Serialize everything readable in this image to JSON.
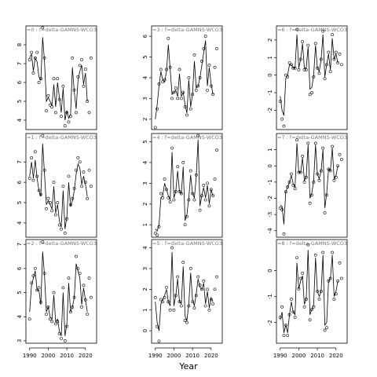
{
  "figure": {
    "xlabel": "Year"
  },
  "chart_data": [
    {
      "type": "line",
      "title": "=0 : f=delta-GAMNS-WCO3",
      "x": [
        1990,
        1991,
        1992,
        1993,
        1994,
        1995,
        1996,
        1997,
        1998,
        1999,
        2000,
        2001,
        2002,
        2003,
        2004,
        2005,
        2006,
        2007,
        2008,
        2009,
        2010,
        2011,
        2012,
        2013,
        2014,
        2015,
        2016,
        2017,
        2018,
        2019,
        2020,
        2021,
        2022,
        2023
      ],
      "y": [
        7.2,
        7.6,
        6.5,
        7.3,
        7.6,
        6.0,
        6.2,
        8.9,
        7.3,
        4.5,
        5.3,
        4.8,
        4.7,
        6.2,
        4.4,
        6.2,
        5.1,
        4.2,
        5.8,
        3.7,
        4.4,
        3.9,
        4.2,
        7.3,
        5.6,
        4.4,
        6.3,
        6.9,
        7.2,
        5.8,
        6.7,
        5.0,
        4.4,
        7.3
      ],
      "fit": [
        7.3,
        7.5,
        6.6,
        7.3,
        7.1,
        6.3,
        6.1,
        8.4,
        7.1,
        5.0,
        5.2,
        5.0,
        4.8,
        5.9,
        4.7,
        6.0,
        5.2,
        4.4,
        5.7,
        4.0,
        4.5,
        4.1,
        4.3,
        6.8,
        5.5,
        4.6,
        6.1,
        6.6,
        6.9,
        5.9,
        6.5,
        5.0
      ],
      "ylim": [
        3.5,
        9.0
      ],
      "yticks": [
        4,
        5,
        6,
        7,
        8
      ]
    },
    {
      "type": "line",
      "title": "=1 : f=delta-GAMNS-WCO3",
      "x": [
        1990,
        1991,
        1992,
        1993,
        1994,
        1995,
        1996,
        1997,
        1998,
        1999,
        2000,
        2001,
        2002,
        2003,
        2004,
        2005,
        2006,
        2007,
        2008,
        2009,
        2010,
        2011,
        2012,
        2013,
        2014,
        2015,
        2016,
        2017,
        2018,
        2019,
        2020,
        2021,
        2022,
        2023
      ],
      "y": [
        6.2,
        7.2,
        6.1,
        7.5,
        6.3,
        5.6,
        5.4,
        8.3,
        6.6,
        4.7,
        5.2,
        5.0,
        4.6,
        6.0,
        4.4,
        5.0,
        3.9,
        3.7,
        5.8,
        3.5,
        4.2,
        6.3,
        4.9,
        5.2,
        5.7,
        6.6,
        7.2,
        7.0,
        5.8,
        6.5,
        6.0,
        5.2,
        6.6,
        5.8
      ],
      "fit": [
        6.3,
        7.0,
        6.2,
        7.1,
        6.2,
        5.6,
        5.3,
        7.9,
        6.4,
        4.9,
        5.1,
        4.9,
        4.7,
        5.8,
        4.5,
        4.9,
        4.1,
        3.8,
        5.6,
        3.7,
        4.3,
        6.0,
        4.8,
        5.1,
        5.6,
        6.4,
        6.9,
        6.7,
        5.9,
        6.3,
        5.9,
        5.3
      ],
      "ylim": [
        3.3,
        8.4
      ],
      "yticks": [
        4,
        5,
        6,
        7
      ]
    },
    {
      "type": "line",
      "title": "=2 : f=delta-GAMNS-WCO3",
      "x": [
        1990,
        1991,
        1992,
        1993,
        1994,
        1995,
        1996,
        1997,
        1998,
        1999,
        2000,
        2001,
        2002,
        2003,
        2004,
        2005,
        2006,
        2007,
        2008,
        2009,
        2010,
        2011,
        2012,
        2013,
        2014,
        2015,
        2016,
        2017,
        2018,
        2019,
        2020,
        2021,
        2022,
        2023
      ],
      "y": [
        3.9,
        5.4,
        5.7,
        6.0,
        5.1,
        5.2,
        4.6,
        7.1,
        5.8,
        4.1,
        4.4,
        3.9,
        3.8,
        5.0,
        3.7,
        3.8,
        3.3,
        3.1,
        5.2,
        3.0,
        3.6,
        5.6,
        4.2,
        4.4,
        4.8,
        6.5,
        6.0,
        5.8,
        4.4,
        5.3,
        4.7,
        4.1,
        5.6,
        4.8
      ],
      "fit": [
        4.2,
        5.3,
        5.6,
        5.9,
        5.1,
        5.1,
        4.5,
        6.7,
        5.7,
        4.2,
        4.4,
        4.0,
        3.9,
        4.9,
        3.8,
        3.9,
        3.4,
        3.2,
        5.0,
        3.2,
        3.7,
        5.4,
        4.2,
        4.4,
        4.8,
        6.2,
        5.9,
        5.6,
        4.5,
        5.2,
        4.7,
        4.2
      ],
      "ylim": [
        2.9,
        7.2
      ],
      "yticks": [
        3,
        4,
        5,
        6,
        7
      ]
    },
    {
      "type": "line",
      "title": "=3 : f=delta-GAMNS-WCO3",
      "x": [
        1990,
        1991,
        1992,
        1993,
        1994,
        1995,
        1996,
        1997,
        1998,
        1999,
        2000,
        2001,
        2002,
        2003,
        2004,
        2005,
        2006,
        2007,
        2008,
        2009,
        2010,
        2011,
        2012,
        2013,
        2014,
        2015,
        2016,
        2017,
        2018,
        2019,
        2020,
        2021,
        2022,
        2023
      ],
      "y": [
        1.6,
        2.5,
        3.7,
        4.4,
        3.8,
        3.9,
        4.4,
        5.9,
        4.5,
        3.0,
        3.3,
        3.5,
        3.0,
        4.4,
        3.0,
        3.3,
        2.6,
        2.2,
        4.0,
        2.5,
        3.2,
        5.1,
        3.4,
        3.6,
        4.0,
        4.8,
        5.4,
        6.0,
        3.4,
        4.6,
        3.6,
        3.2,
        4.5,
        5.4
      ],
      "fit": [
        2.0,
        2.7,
        3.6,
        4.3,
        3.9,
        3.8,
        4.3,
        5.6,
        4.4,
        3.2,
        3.3,
        3.4,
        3.1,
        4.2,
        3.1,
        3.3,
        2.7,
        2.3,
        3.9,
        2.6,
        3.2,
        4.8,
        3.5,
        3.6,
        4.0,
        4.6,
        5.2,
        5.8,
        3.6,
        4.5,
        3.7,
        3.2
      ],
      "ylim": [
        1.5,
        6.5
      ],
      "yticks": [
        2,
        3,
        4,
        5,
        6
      ]
    },
    {
      "type": "line",
      "title": "=4 : f=delta-GAMNS-WCO3",
      "x": [
        1990,
        1991,
        1992,
        1993,
        1994,
        1995,
        1996,
        1997,
        1998,
        1999,
        2000,
        2001,
        2002,
        2003,
        2004,
        2005,
        2006,
        2007,
        2008,
        2009,
        2010,
        2011,
        2012,
        2013,
        2014,
        2015,
        2016,
        2017,
        2018,
        2019,
        2020,
        2021,
        2022,
        2023
      ],
      "y": [
        0.6,
        0.5,
        0.9,
        2.5,
        2.3,
        3.2,
        2.7,
        2.3,
        2.1,
        4.7,
        2.2,
        2.6,
        3.8,
        2.6,
        2.5,
        4.0,
        1.0,
        1.4,
        2.2,
        3.6,
        2.5,
        2.2,
        3.4,
        5.3,
        1.7,
        2.4,
        2.9,
        2.2,
        3.0,
        1.9,
        2.7,
        2.4,
        3.2,
        4.6
      ],
      "fit": [
        0.8,
        0.7,
        1.0,
        2.3,
        2.4,
        3.0,
        2.7,
        2.4,
        2.2,
        4.5,
        2.3,
        2.6,
        3.6,
        2.6,
        2.5,
        3.8,
        1.2,
        1.5,
        2.3,
        3.4,
        2.5,
        2.3,
        3.3,
        5.1,
        1.9,
        2.4,
        2.8,
        2.3,
        2.9,
        2.0,
        2.7,
        2.4
      ],
      "ylim": [
        0.4,
        5.4
      ],
      "yticks": [
        1,
        2,
        3,
        4,
        5
      ]
    },
    {
      "type": "line",
      "title": "=5 : f=delta-GAMNS-WCO3",
      "x": [
        1990,
        1991,
        1992,
        1993,
        1994,
        1995,
        1996,
        1997,
        1998,
        1999,
        2000,
        2001,
        2002,
        2003,
        2004,
        2005,
        2006,
        2007,
        2008,
        2009,
        2010,
        2011,
        2012,
        2013,
        2014,
        2015,
        2016,
        2017,
        2018,
        2019,
        2020,
        2021,
        2022,
        2023
      ],
      "y": [
        1.6,
        0.2,
        -0.5,
        1.5,
        1.4,
        1.6,
        2.1,
        1.4,
        1.0,
        4.0,
        1.0,
        1.7,
        2.6,
        1.4,
        1.2,
        3.3,
        0.5,
        0.4,
        1.2,
        3.0,
        1.4,
        1.1,
        1.7,
        2.6,
        2.2,
        2.0,
        2.4,
        1.2,
        2.0,
        1.0,
        1.5,
        1.3,
        2.0,
        2.6
      ],
      "fit": [
        1.4,
        0.4,
        0.0,
        1.3,
        1.5,
        1.7,
        2.0,
        1.4,
        1.2,
        3.8,
        1.2,
        1.7,
        2.5,
        1.4,
        1.3,
        3.1,
        0.7,
        0.5,
        1.3,
        2.8,
        1.5,
        1.2,
        1.8,
        2.5,
        2.1,
        2.0,
        2.3,
        1.3,
        1.9,
        1.1,
        1.6,
        1.4
      ],
      "ylim": [
        -0.6,
        4.4
      ],
      "yticks": [
        0,
        1,
        2,
        3,
        4
      ]
    },
    {
      "type": "line",
      "title": "=6 : f=delta-GAMNS-WCO3",
      "x": [
        1990,
        1991,
        1992,
        1993,
        1994,
        1995,
        1996,
        1997,
        1998,
        1999,
        2000,
        2001,
        2002,
        2003,
        2004,
        2005,
        2006,
        2007,
        2008,
        2009,
        2010,
        2011,
        2012,
        2013,
        2014,
        2015,
        2016,
        2017,
        2018,
        2019,
        2020,
        2021,
        2022,
        2023
      ],
      "y": [
        -1.5,
        -2.5,
        -2.9,
        0.0,
        -0.1,
        0.7,
        0.6,
        0.4,
        0.4,
        2.6,
        0.3,
        0.9,
        1.9,
        0.3,
        0.3,
        1.7,
        -1.1,
        -1.0,
        -0.1,
        1.8,
        0.4,
        0.1,
        0.9,
        2.5,
        -0.2,
        0.6,
        1.3,
        0.2,
        2.3,
        0.9,
        1.3,
        0.7,
        1.2,
        0.6
      ],
      "fit": [
        -1.2,
        -2.0,
        -2.3,
        -0.2,
        0.0,
        0.6,
        0.6,
        0.4,
        0.4,
        2.3,
        0.4,
        0.9,
        1.8,
        0.4,
        0.4,
        1.6,
        -0.8,
        -0.7,
        0.0,
        1.7,
        0.4,
        0.2,
        0.9,
        2.3,
        -0.1,
        0.6,
        1.2,
        0.3,
        2.1,
        0.9,
        1.2,
        0.7
      ],
      "ylim": [
        -3.1,
        2.8
      ],
      "yticks": [
        -2,
        -1,
        0,
        1,
        2
      ]
    },
    {
      "type": "line",
      "title": "=7 : f=delta-GAMNS-WCO3",
      "x": [
        1990,
        1991,
        1992,
        1993,
        1994,
        1995,
        1996,
        1997,
        1998,
        1999,
        2000,
        2001,
        2002,
        2003,
        2004,
        2005,
        2006,
        2007,
        2008,
        2009,
        2010,
        2011,
        2012,
        2013,
        2014,
        2015,
        2016,
        2017,
        2018,
        2019,
        2020,
        2021,
        2022,
        2023
      ],
      "y": [
        -2.6,
        -2.7,
        -4.2,
        -1.6,
        -1.3,
        -1.0,
        -0.5,
        -1.2,
        -1.4,
        1.6,
        -0.4,
        -0.4,
        0.6,
        -1.0,
        -0.7,
        1.4,
        -2.3,
        -1.8,
        -1.0,
        1.4,
        -0.5,
        -0.9,
        -0.3,
        1.1,
        -2.9,
        -1.8,
        -0.2,
        -0.3,
        1.2,
        -0.9,
        -0.7,
        0.0,
        0.7,
        0.4
      ],
      "fit": [
        -2.4,
        -2.5,
        -3.6,
        -1.6,
        -1.3,
        -1.0,
        -0.6,
        -1.1,
        -1.3,
        1.4,
        -0.4,
        -0.4,
        0.5,
        -0.9,
        -0.7,
        1.3,
        -2.0,
        -1.7,
        -0.9,
        1.3,
        -0.5,
        -0.8,
        -0.3,
        1.0,
        -2.6,
        -1.7,
        -0.2,
        -0.3,
        1.1,
        -0.8,
        -0.6,
        0.0
      ],
      "ylim": [
        -4.4,
        2.0
      ],
      "yticks": [
        -4,
        -3,
        -2,
        -1,
        0,
        1
      ]
    },
    {
      "type": "line",
      "title": "=8 : f=delta-GAMNS-WCO3",
      "x": [
        1990,
        1991,
        1992,
        1993,
        1994,
        1995,
        1996,
        1997,
        1998,
        1999,
        2000,
        2001,
        2002,
        2003,
        2004,
        2005,
        2006,
        2007,
        2008,
        2009,
        2010,
        2011,
        2012,
        2013,
        2014,
        2015,
        2016,
        2017,
        2018,
        2019,
        2020,
        2021,
        2022,
        2023
      ],
      "y": [
        -1.8,
        -1.4,
        -2.5,
        -2.1,
        -2.5,
        -1.7,
        -1.1,
        -1.6,
        -1.8,
        0.5,
        -0.7,
        -0.3,
        -0.1,
        -1.4,
        -1.1,
        1.0,
        -1.9,
        -1.5,
        -1.4,
        0.6,
        -0.8,
        -1.1,
        -0.8,
        0.7,
        -2.3,
        -2.2,
        -0.4,
        -0.3,
        0.7,
        -1.1,
        -0.9,
        -0.4,
        0.3,
        -0.3
      ],
      "fit": [
        -1.9,
        -1.6,
        -2.4,
        -2.1,
        -2.4,
        -1.7,
        -1.2,
        -1.6,
        -1.7,
        0.3,
        -0.7,
        -0.4,
        -0.2,
        -1.3,
        -1.1,
        0.8,
        -1.7,
        -1.5,
        -1.3,
        0.5,
        -0.8,
        -1.0,
        -0.8,
        0.6,
        -2.1,
        -2.0,
        -0.4,
        -0.3,
        0.6,
        -1.0,
        -0.8,
        -0.4
      ],
      "ylim": [
        -2.8,
        1.2
      ],
      "yticks": [
        -2,
        -1,
        0
      ]
    }
  ],
  "shared_x": {
    "xlim": [
      1988,
      2026
    ],
    "xticks": [
      1990,
      2000,
      2010,
      2020
    ]
  }
}
